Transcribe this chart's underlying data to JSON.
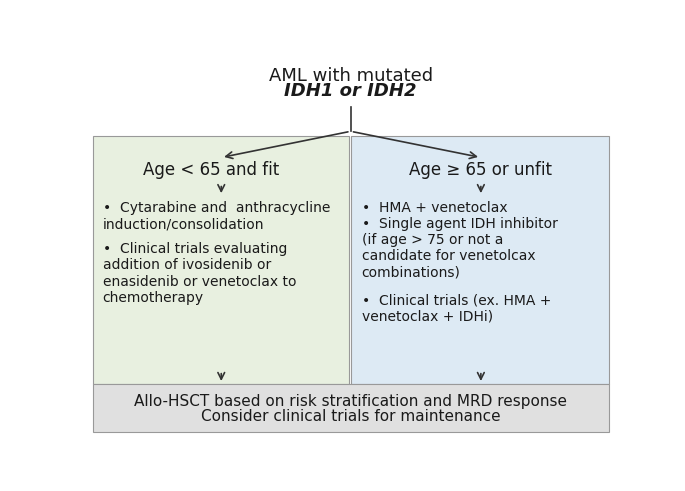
{
  "title_line1": "AML with mutated",
  "title_line2": "IDH1 or IDH2",
  "left_box_color": "#e8f0e0",
  "right_box_color": "#ddeaf4",
  "bottom_box_color": "#e0e0e0",
  "left_header": "Age < 65 and fit",
  "right_header": "Age ≥ 65 or unfit",
  "left_bullets": [
    "Cytarabine and  anthracycline\ninduction/consolidation",
    "Clinical trials evaluating\naddition of ivosidenib or\nenasidenib or venetoclax to\nchemotherapy"
  ],
  "right_bullets": [
    "HMA + venetoclax",
    "Single agent IDH inhibitor\n(if age > 75 or not a\ncandidate for venetolcax\ncombinations)",
    "Clinical trials (ex. HMA +\nvenetoclax + IDHi)"
  ],
  "bottom_line1": "Allo-HSCT based on risk stratification and MRD response",
  "bottom_line2": "Consider clinical trials for maintenance",
  "text_color": "#1a1a1a",
  "arrow_color": "#333333",
  "font_size_title": 13,
  "font_size_header": 12,
  "font_size_body": 10,
  "font_size_bottom": 11
}
